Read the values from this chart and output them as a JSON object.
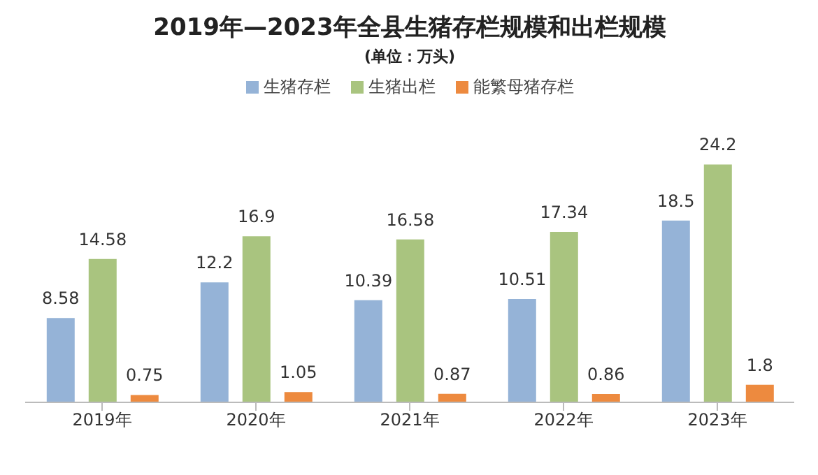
{
  "chart_data": {
    "type": "bar",
    "title": "2019年—2023年全县生猪存栏规模和出栏规模",
    "subtitle": "(单位：万头)",
    "categories": [
      "2019年",
      "2020年",
      "2021年",
      "2022年",
      "2023年"
    ],
    "series": [
      {
        "name": "生猪存栏",
        "color": "#95b3d7",
        "values": [
          8.58,
          12.2,
          10.39,
          10.51,
          18.5
        ]
      },
      {
        "name": "生猪出栏",
        "color": "#a9c47f",
        "values": [
          14.58,
          16.9,
          16.58,
          17.34,
          24.2
        ]
      },
      {
        "name": "能繁母猪存栏",
        "color": "#ed8a3f",
        "values": [
          0.75,
          1.05,
          0.87,
          0.86,
          1.8
        ]
      }
    ],
    "data_labels": true,
    "legend": "top",
    "grid": false
  }
}
